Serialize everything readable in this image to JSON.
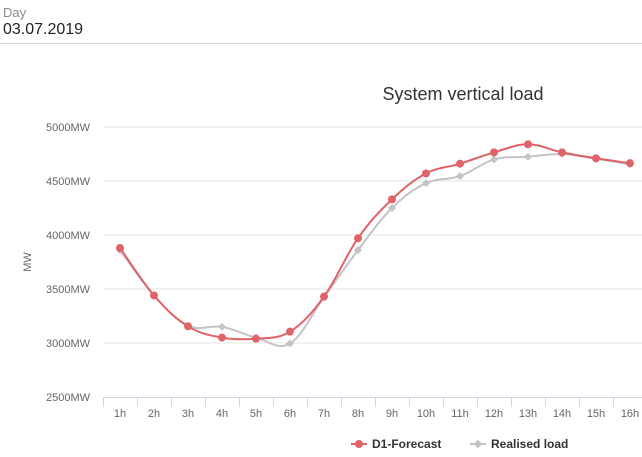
{
  "day_picker": {
    "label": "Day",
    "value": "03.07.2019"
  },
  "chart_data": {
    "type": "line",
    "title": "System vertical load",
    "ylabel": "MW",
    "xlabel": "",
    "categories": [
      "1h",
      "2h",
      "3h",
      "4h",
      "5h",
      "6h",
      "7h",
      "8h",
      "9h",
      "10h",
      "11h",
      "12h",
      "13h",
      "14h",
      "15h",
      "16h"
    ],
    "ylim": [
      2500,
      5000
    ],
    "yticks": [
      2500,
      3000,
      3500,
      4000,
      4500,
      5000
    ],
    "ytick_labels": [
      "2500MW",
      "3000MW",
      "3500MW",
      "4000MW",
      "4500MW",
      "5000MW"
    ],
    "grid": true,
    "legend": "bottom-center",
    "series": [
      {
        "name": "D1-Forecast",
        "color": "#e06367",
        "marker": "circle",
        "values": [
          3880,
          3440,
          3155,
          3050,
          3040,
          3105,
          3430,
          3970,
          4330,
          4570,
          4660,
          4765,
          4840,
          4765,
          4710,
          4665
        ]
      },
      {
        "name": "Realised load",
        "color": "#c4c4c6",
        "marker": "diamond",
        "values": [
          3860,
          3440,
          3160,
          3150,
          3050,
          2995,
          3425,
          3860,
          4250,
          4480,
          4545,
          4700,
          4725,
          4750,
          4705,
          4655
        ]
      }
    ]
  }
}
